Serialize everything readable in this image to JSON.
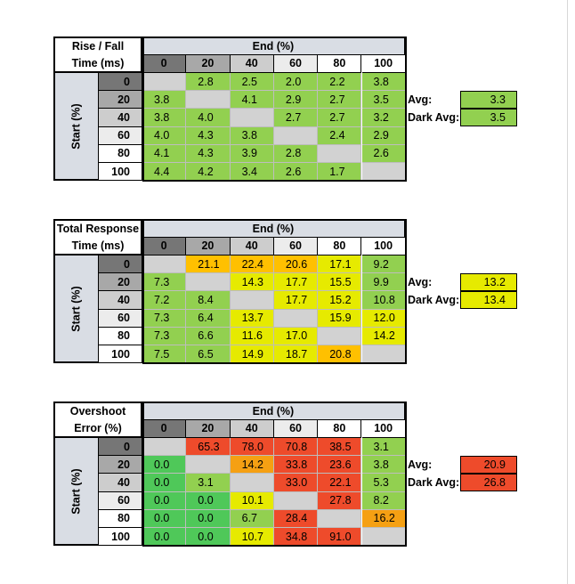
{
  "colors": {
    "gray": "#d2d2d2",
    "green": "#92d050",
    "darkgreen": "#4fc859",
    "yellow": "#e6ea00",
    "amber": "#ffc000",
    "orange": "#f5a013",
    "red": "#ee4b2b",
    "hdr_dark": "#767676",
    "hdr_mid": "#a8a8a8",
    "hdr_light": "#cdcdcd",
    "hdr_pale": "#ececec",
    "hdr_white": "#ffffff"
  },
  "chart_data": [
    {
      "type": "table",
      "title_lines": [
        "Rise / Fall",
        "Time (ms)"
      ],
      "col_header": "End (%)",
      "row_header": "Start (%)",
      "columns": [
        "0",
        "20",
        "40",
        "60",
        "80",
        "100"
      ],
      "rows": [
        "0",
        "20",
        "40",
        "60",
        "80",
        "100"
      ],
      "values": [
        [
          "",
          "2.8",
          "2.5",
          "2.0",
          "2.2",
          "3.8"
        ],
        [
          "3.8",
          "",
          "4.1",
          "2.9",
          "2.7",
          "3.5"
        ],
        [
          "3.8",
          "4.0",
          "",
          "2.7",
          "2.7",
          "3.2"
        ],
        [
          "4.0",
          "4.3",
          "3.8",
          "",
          "2.4",
          "2.9"
        ],
        [
          "4.1",
          "4.3",
          "3.9",
          "2.8",
          "",
          "2.6"
        ],
        [
          "4.4",
          "4.2",
          "3.4",
          "2.6",
          "1.7",
          ""
        ]
      ],
      "cell_colors": [
        [
          "gray",
          "green",
          "green",
          "green",
          "green",
          "green"
        ],
        [
          "green",
          "gray",
          "green",
          "green",
          "green",
          "green"
        ],
        [
          "green",
          "green",
          "gray",
          "green",
          "green",
          "green"
        ],
        [
          "green",
          "green",
          "green",
          "gray",
          "green",
          "green"
        ],
        [
          "green",
          "green",
          "green",
          "green",
          "gray",
          "green"
        ],
        [
          "green",
          "green",
          "green",
          "green",
          "green",
          "gray"
        ]
      ],
      "avg_label": "Avg:",
      "avg_value": "3.3",
      "avg_color": "green",
      "dark_avg_label": "Dark Avg:",
      "dark_avg_value": "3.5",
      "dark_avg_color": "green"
    },
    {
      "type": "table",
      "title_lines": [
        "Total Response",
        "Time (ms)"
      ],
      "col_header": "End (%)",
      "row_header": "Start (%)",
      "columns": [
        "0",
        "20",
        "40",
        "60",
        "80",
        "100"
      ],
      "rows": [
        "0",
        "20",
        "40",
        "60",
        "80",
        "100"
      ],
      "values": [
        [
          "",
          "21.1",
          "22.4",
          "20.6",
          "17.1",
          "9.2"
        ],
        [
          "7.3",
          "",
          "14.3",
          "17.7",
          "15.5",
          "9.9"
        ],
        [
          "7.2",
          "8.4",
          "",
          "17.7",
          "15.2",
          "10.8"
        ],
        [
          "7.3",
          "6.4",
          "13.7",
          "",
          "15.9",
          "12.0"
        ],
        [
          "7.3",
          "6.6",
          "11.6",
          "17.0",
          "",
          "14.2"
        ],
        [
          "7.5",
          "6.5",
          "14.9",
          "18.7",
          "20.8",
          ""
        ]
      ],
      "cell_colors": [
        [
          "gray",
          "amber",
          "amber",
          "amber",
          "yellow",
          "green"
        ],
        [
          "green",
          "gray",
          "yellow",
          "yellow",
          "yellow",
          "green"
        ],
        [
          "green",
          "green",
          "gray",
          "yellow",
          "yellow",
          "green"
        ],
        [
          "green",
          "green",
          "yellow",
          "gray",
          "yellow",
          "yellow"
        ],
        [
          "green",
          "green",
          "yellow",
          "yellow",
          "gray",
          "yellow"
        ],
        [
          "green",
          "green",
          "yellow",
          "yellow",
          "amber",
          "gray"
        ]
      ],
      "avg_label": "Avg:",
      "avg_value": "13.2",
      "avg_color": "yellow",
      "dark_avg_label": "Dark Avg:",
      "dark_avg_value": "13.4",
      "dark_avg_color": "yellow"
    },
    {
      "type": "table",
      "title_lines": [
        "Overshoot",
        "Error (%)"
      ],
      "col_header": "End (%)",
      "row_header": "Start (%)",
      "columns": [
        "0",
        "20",
        "40",
        "60",
        "80",
        "100"
      ],
      "rows": [
        "0",
        "20",
        "40",
        "60",
        "80",
        "100"
      ],
      "values": [
        [
          "",
          "65.3",
          "78.0",
          "70.8",
          "38.5",
          "3.1"
        ],
        [
          "0.0",
          "",
          "14.2",
          "33.8",
          "23.6",
          "3.8"
        ],
        [
          "0.0",
          "3.1",
          "",
          "33.0",
          "22.1",
          "5.3"
        ],
        [
          "0.0",
          "0.0",
          "10.1",
          "",
          "27.8",
          "8.2"
        ],
        [
          "0.0",
          "0.0",
          "6.7",
          "28.4",
          "",
          "16.2"
        ],
        [
          "0.0",
          "0.0",
          "10.7",
          "34.8",
          "91.0",
          ""
        ]
      ],
      "cell_colors": [
        [
          "gray",
          "red",
          "red",
          "red",
          "red",
          "green"
        ],
        [
          "darkgreen",
          "gray",
          "orange",
          "red",
          "red",
          "green"
        ],
        [
          "darkgreen",
          "green",
          "gray",
          "red",
          "red",
          "green"
        ],
        [
          "darkgreen",
          "darkgreen",
          "yellow",
          "gray",
          "red",
          "green"
        ],
        [
          "darkgreen",
          "darkgreen",
          "green",
          "red",
          "gray",
          "orange"
        ],
        [
          "darkgreen",
          "darkgreen",
          "yellow",
          "red",
          "red",
          "gray"
        ]
      ],
      "avg_label": "Avg:",
      "avg_value": "20.9",
      "avg_color": "red",
      "dark_avg_label": "Dark Avg:",
      "dark_avg_value": "26.8",
      "dark_avg_color": "red"
    }
  ]
}
